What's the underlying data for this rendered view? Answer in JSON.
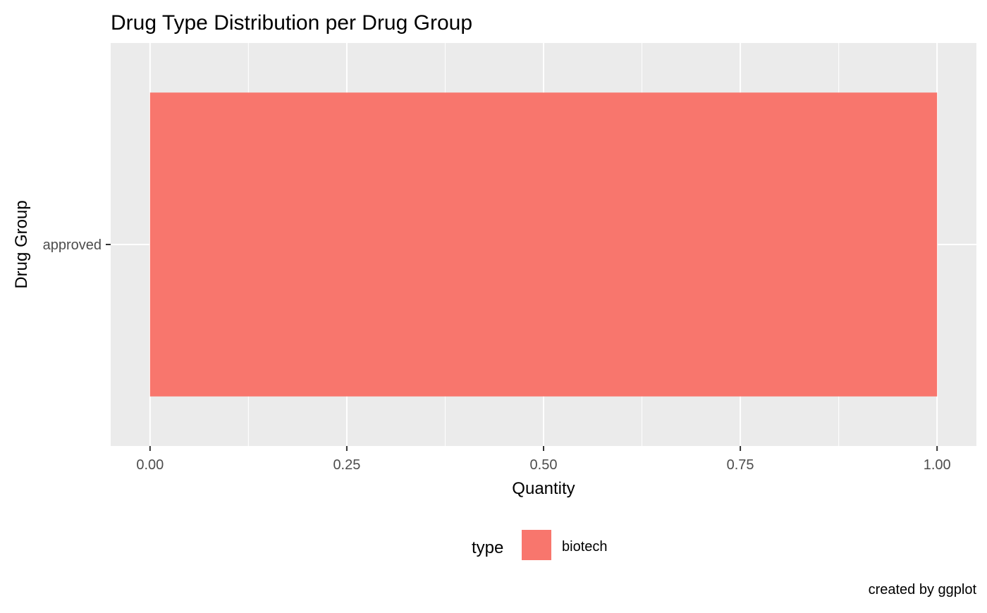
{
  "chart_data": {
    "type": "bar",
    "orientation": "horizontal",
    "title": "Drug Type Distribution per Drug Group",
    "xlabel": "Quantity",
    "ylabel": "Drug Group",
    "categories": [
      "approved"
    ],
    "series": [
      {
        "name": "biotech",
        "values": [
          1.0
        ],
        "color": "#F8766D"
      }
    ],
    "xlim": [
      -0.05,
      1.05
    ],
    "xticks": [
      0.0,
      0.25,
      0.5,
      0.75,
      1.0
    ],
    "xtick_labels": [
      "0.00",
      "0.25",
      "0.50",
      "0.75",
      "1.00"
    ],
    "grid": true,
    "legend": {
      "title": "type",
      "position": "bottom",
      "entries": [
        "biotech"
      ]
    },
    "caption": "created by ggplot"
  },
  "colors": {
    "panel_background": "#EBEBEB",
    "grid_line": "#FFFFFF",
    "text_dark": "#000000",
    "tick_text": "#4D4D4D",
    "bar_biotech": "#F8766D"
  }
}
